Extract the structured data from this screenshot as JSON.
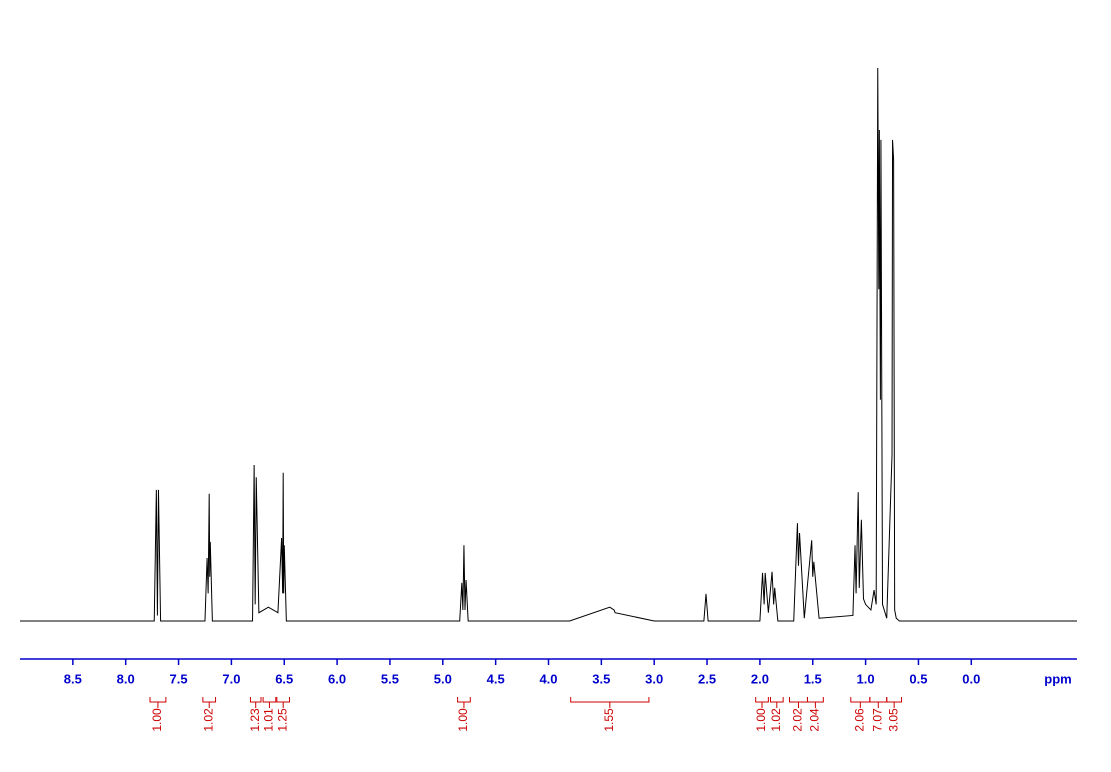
{
  "chart_data": {
    "type": "line",
    "xlabel": "ppm",
    "line_color": "#000000",
    "axis_color": "#0000cc",
    "integral_color": "#cc0000",
    "xlim": [
      9.0,
      -1.0
    ],
    "ylim": [
      0,
      100
    ],
    "xticks": [
      {
        "value": 8.5,
        "label": "8.5"
      },
      {
        "value": 8.0,
        "label": "8.0"
      },
      {
        "value": 7.5,
        "label": "7.5"
      },
      {
        "value": 7.0,
        "label": "7.0"
      },
      {
        "value": 6.5,
        "label": "6.5"
      },
      {
        "value": 6.0,
        "label": "6.0"
      },
      {
        "value": 5.5,
        "label": "5.5"
      },
      {
        "value": 5.0,
        "label": "5.0"
      },
      {
        "value": 4.5,
        "label": "4.5"
      },
      {
        "value": 4.0,
        "label": "4.0"
      },
      {
        "value": 3.5,
        "label": "3.5"
      },
      {
        "value": 3.0,
        "label": "3.0"
      },
      {
        "value": 2.5,
        "label": "2.5"
      },
      {
        "value": 2.0,
        "label": "2.0"
      },
      {
        "value": 1.5,
        "label": "1.5"
      },
      {
        "value": 1.0,
        "label": "1.0"
      },
      {
        "value": 0.5,
        "label": "0.5"
      },
      {
        "value": 0.0,
        "label": "0.0"
      }
    ],
    "x": [
      9.0,
      7.73,
      7.71,
      7.7,
      7.69,
      7.67,
      7.25,
      7.23,
      7.22,
      7.21,
      7.205,
      7.2,
      7.18,
      6.8,
      6.785,
      6.775,
      6.765,
      6.74,
      6.65,
      6.56,
      6.525,
      6.515,
      6.51,
      6.505,
      6.5,
      6.48,
      4.84,
      4.82,
      4.81,
      4.8,
      4.79,
      4.78,
      4.76,
      3.8,
      3.42,
      3.38,
      3.37,
      3.0,
      2.53,
      2.51,
      2.49,
      2.0,
      1.975,
      1.96,
      1.95,
      1.92,
      1.885,
      1.87,
      1.86,
      1.83,
      1.68,
      1.645,
      1.635,
      1.625,
      1.58,
      1.51,
      1.5,
      1.49,
      1.44,
      1.12,
      1.1,
      1.09,
      1.07,
      1.06,
      1.04,
      1.02,
      1.0,
      0.95,
      0.92,
      0.9,
      0.885,
      0.875,
      0.87,
      0.86,
      0.855,
      0.84,
      0.8,
      0.75,
      0.745,
      0.735,
      0.725,
      0.71,
      0.68,
      -1.0
    ],
    "values": [
      0,
      0,
      23.7,
      1,
      23.7,
      0,
      0,
      11.4,
      5,
      23,
      8,
      14.3,
      0,
      0,
      28.2,
      3,
      26,
      1.5,
      2.5,
      1.5,
      15,
      5,
      26.8,
      5,
      13.7,
      0,
      0,
      6.9,
      2,
      13.7,
      2,
      7.4,
      0,
      0,
      2.5,
      2.0,
      1.5,
      0,
      0,
      4.9,
      0,
      0,
      8.7,
      3,
      8.7,
      1.5,
      8.9,
      3,
      6,
      0,
      0,
      17.7,
      10,
      15.9,
      0.5,
      14.6,
      8,
      10.7,
      0.5,
      1,
      13.7,
      5,
      23.3,
      6,
      18.3,
      4,
      3,
      2,
      5.6,
      3,
      100,
      60,
      88.8,
      40,
      87,
      3,
      0.5,
      30,
      87,
      83.4,
      2,
      0.5,
      0,
      0
    ],
    "integrals": [
      {
        "label": "1.00",
        "range": [
          7.77,
          7.62
        ]
      },
      {
        "label": "1.02",
        "range": [
          7.27,
          7.15
        ]
      },
      {
        "label": "1.23",
        "range": [
          6.82,
          6.72
        ]
      },
      {
        "label": "1.01",
        "range": [
          6.7,
          6.58
        ]
      },
      {
        "label": "1.25",
        "range": [
          6.57,
          6.45
        ]
      },
      {
        "label": "1.00",
        "range": [
          4.86,
          4.74
        ]
      },
      {
        "label": "1.55",
        "range": [
          3.79,
          3.05
        ]
      },
      {
        "label": "1.00",
        "range": [
          2.04,
          1.92
        ]
      },
      {
        "label": "1.02",
        "range": [
          1.9,
          1.78
        ]
      },
      {
        "label": "2.02",
        "range": [
          1.72,
          1.55
        ]
      },
      {
        "label": "2.04",
        "range": [
          1.55,
          1.4
        ]
      },
      {
        "label": "2.06",
        "range": [
          1.14,
          0.96
        ]
      },
      {
        "label": "7.07",
        "range": [
          0.96,
          0.8
        ]
      },
      {
        "label": "3.05",
        "range": [
          0.8,
          0.66
        ]
      }
    ]
  }
}
